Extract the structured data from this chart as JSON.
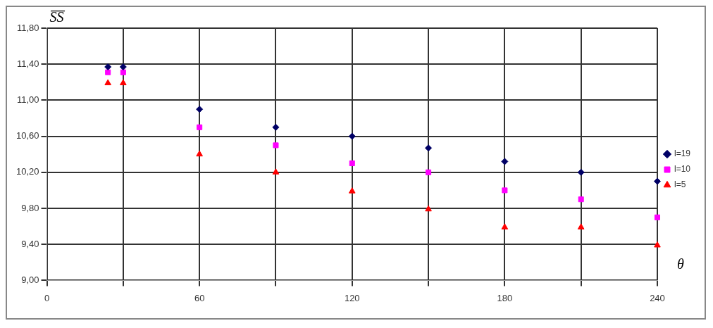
{
  "chart_data": {
    "type": "scatter",
    "xlabel": "θ",
    "ylabel": "S̅S̅",
    "x": [
      24,
      30,
      60,
      90,
      120,
      150,
      180,
      210,
      240
    ],
    "series": [
      {
        "name": "l=19",
        "color": "#000066",
        "marker": "diamond",
        "values": [
          11.37,
          11.37,
          10.9,
          10.7,
          10.6,
          10.47,
          10.32,
          10.2,
          10.1
        ]
      },
      {
        "name": "l=10",
        "color": "#ff00ff",
        "marker": "square",
        "values": [
          11.31,
          11.31,
          10.7,
          10.5,
          10.3,
          10.2,
          10.0,
          9.9,
          9.7
        ]
      },
      {
        "name": "l=5",
        "color": "#ff0000",
        "marker": "triangle",
        "values": [
          11.19,
          11.19,
          10.4,
          10.2,
          9.99,
          9.79,
          9.59,
          9.59,
          9.39
        ]
      }
    ],
    "xlim": [
      0,
      240
    ],
    "xticks": [
      0,
      {
        "value": 30,
        "label": null
      },
      60,
      {
        "value": 90,
        "label": null
      },
      120,
      {
        "value": 150,
        "label": null
      },
      180,
      {
        "value": 210,
        "label": null
      },
      240
    ],
    "ylim": [
      9.0,
      11.8
    ],
    "yticks": [
      {
        "value": 9.0,
        "label": "9,00"
      },
      {
        "value": 9.4,
        "label": "9,40"
      },
      {
        "value": 9.8,
        "label": "9,80"
      },
      {
        "value": 10.2,
        "label": "10,20"
      },
      {
        "value": 10.6,
        "label": "10,60"
      },
      {
        "value": 11.0,
        "label": "11,00"
      },
      {
        "value": 11.4,
        "label": "11,40"
      },
      {
        "value": 11.8,
        "label": "11,80"
      }
    ],
    "grid": true,
    "legend": "right"
  }
}
